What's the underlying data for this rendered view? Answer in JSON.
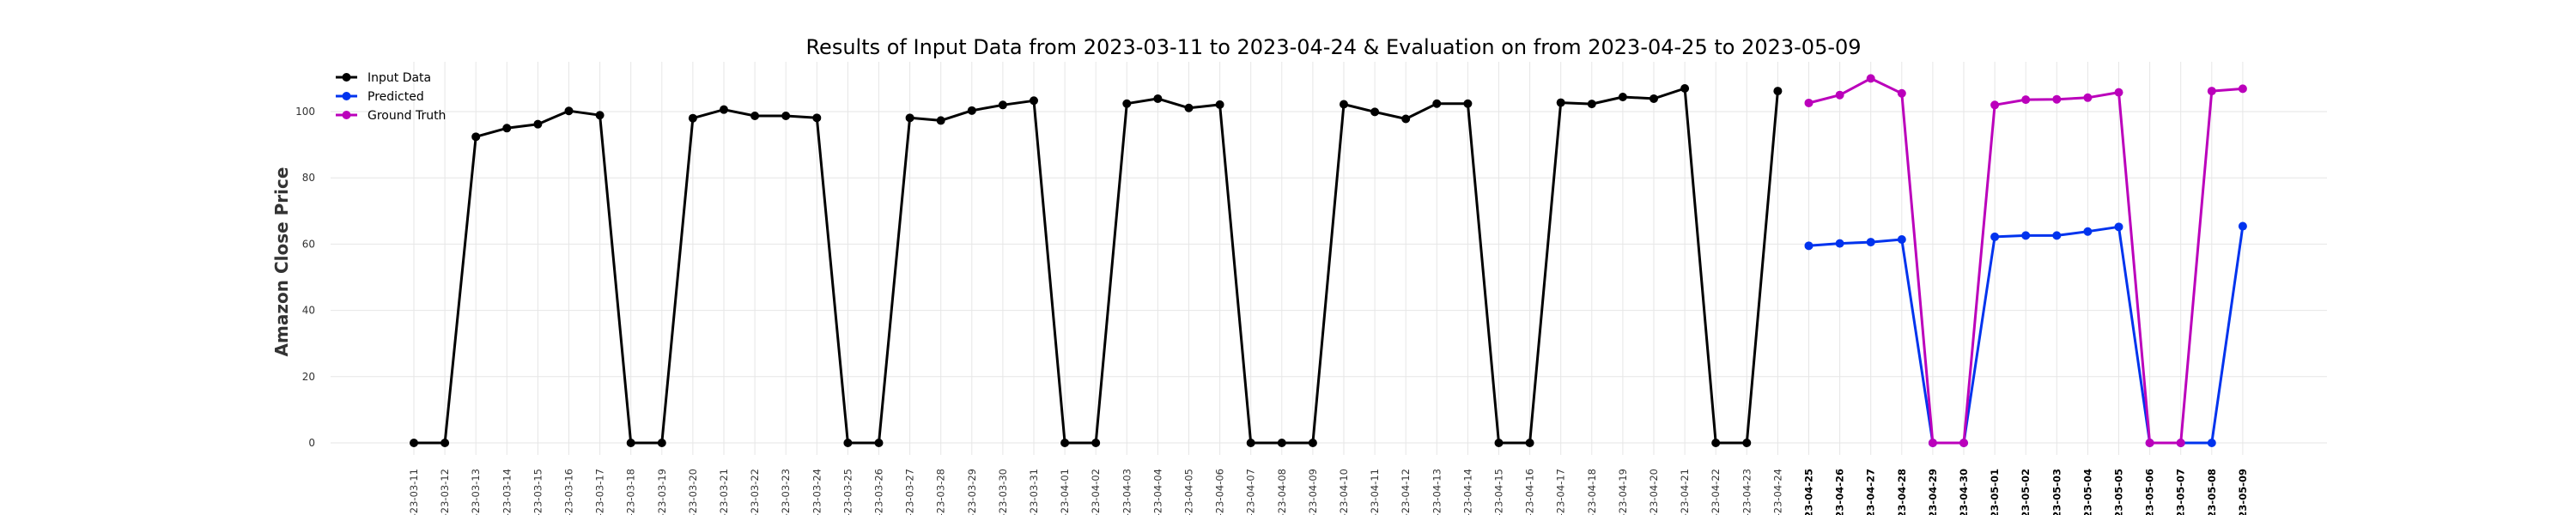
{
  "chart_data": {
    "type": "line",
    "title": "Results of Input Data from 2023-03-11 to 2023-04-24 & Evaluation on from 2023-04-25 to 2023-05-09",
    "xlabel": "",
    "ylabel": "Amazon Close Price",
    "ylim": [
      -8,
      118
    ],
    "yticks": [
      0,
      20,
      40,
      60,
      80,
      100
    ],
    "grid": true,
    "legend_position": "top-left",
    "x": [
      "2023-03-11",
      "2023-03-12",
      "2023-03-13",
      "2023-03-14",
      "2023-03-15",
      "2023-03-16",
      "2023-03-17",
      "2023-03-18",
      "2023-03-19",
      "2023-03-20",
      "2023-03-21",
      "2023-03-22",
      "2023-03-23",
      "2023-03-24",
      "2023-03-25",
      "2023-03-26",
      "2023-03-27",
      "2023-03-28",
      "2023-03-29",
      "2023-03-30",
      "2023-03-31",
      "2023-04-01",
      "2023-04-02",
      "2023-04-03",
      "2023-04-04",
      "2023-04-05",
      "2023-04-06",
      "2023-04-07",
      "2023-04-08",
      "2023-04-09",
      "2023-04-10",
      "2023-04-11",
      "2023-04-12",
      "2023-04-13",
      "2023-04-14",
      "2023-04-15",
      "2023-04-16",
      "2023-04-17",
      "2023-04-18",
      "2023-04-19",
      "2023-04-20",
      "2023-04-21",
      "2023-04-22",
      "2023-04-23",
      "2023-04-24",
      "2023-04-25",
      "2023-04-26",
      "2023-04-27",
      "2023-04-28",
      "2023-04-29",
      "2023-04-30",
      "2023-05-01",
      "2023-05-02",
      "2023-05-03",
      "2023-05-04",
      "2023-05-05",
      "2023-05-06",
      "2023-05-07",
      "2023-05-08",
      "2023-05-09"
    ],
    "xtick_labels": [
      "-23-03-11",
      "-23-03-12",
      "-23-03-13",
      "-23-03-14",
      "-23-03-15",
      "-23-03-16",
      "-23-03-17",
      "-23-03-18",
      "-23-03-19",
      "-23-03-20",
      "-23-03-21",
      "-23-03-22",
      "-23-03-23",
      "-23-03-24",
      "-23-03-25",
      "-23-03-26",
      "-23-03-27",
      "-23-03-28",
      "-23-03-29",
      "-23-03-30",
      "-23-03-31",
      "-23-04-01",
      "-23-04-02",
      "-23-04-03",
      "-23-04-04",
      "-23-04-05",
      "-23-04-06",
      "-23-04-07",
      "-23-04-08",
      "-23-04-09",
      "-23-04-10",
      "-23-04-11",
      "-23-04-12",
      "-23-04-13",
      "-23-04-14",
      "-23-04-15",
      "-23-04-16",
      "-23-04-17",
      "-23-04-18",
      "-23-04-19",
      "-23-04-20",
      "-23-04-21",
      "-23-04-22",
      "-23-04-23",
      "-23-04-24",
      "-23-04-25",
      "-23-04-26",
      "-23-04-27",
      "-23-04-28",
      "-23-04-29",
      "-23-04-30",
      "-23-05-01",
      "-23-05-02",
      "-23-05-03",
      "-23-05-04",
      "-23-05-05",
      "-23-05-06",
      "-23-05-07",
      "-23-05-08",
      "-23-05-09"
    ],
    "bold_from": "2023-04-25",
    "series": [
      {
        "name": "Input Data",
        "color": "#000000",
        "x": [
          "2023-03-11",
          "2023-03-12",
          "2023-03-13",
          "2023-03-14",
          "2023-03-15",
          "2023-03-16",
          "2023-03-17",
          "2023-03-18",
          "2023-03-19",
          "2023-03-20",
          "2023-03-21",
          "2023-03-22",
          "2023-03-23",
          "2023-03-24",
          "2023-03-25",
          "2023-03-26",
          "2023-03-27",
          "2023-03-28",
          "2023-03-29",
          "2023-03-30",
          "2023-03-31",
          "2023-04-01",
          "2023-04-02",
          "2023-04-03",
          "2023-04-04",
          "2023-04-05",
          "2023-04-06",
          "2023-04-07",
          "2023-04-08",
          "2023-04-09",
          "2023-04-10",
          "2023-04-11",
          "2023-04-12",
          "2023-04-13",
          "2023-04-14",
          "2023-04-15",
          "2023-04-16",
          "2023-04-17",
          "2023-04-18",
          "2023-04-19",
          "2023-04-20",
          "2023-04-21",
          "2023-04-22",
          "2023-04-23",
          "2023-04-24"
        ],
        "values": [
          0,
          0,
          92.4,
          95.0,
          96.2,
          100.2,
          98.9,
          0,
          0,
          98.0,
          100.6,
          98.7,
          98.7,
          98.1,
          0,
          0,
          98.1,
          97.3,
          100.3,
          102.0,
          103.3,
          0,
          0,
          102.4,
          103.9,
          101.1,
          102.1,
          0,
          0,
          0,
          102.2,
          99.9,
          97.8,
          102.4,
          102.4,
          0,
          0,
          102.7,
          102.3,
          104.4,
          103.9,
          107.0,
          0,
          0,
          106.2
        ]
      },
      {
        "name": "Predicted",
        "color": "#0033ee",
        "x": [
          "2023-04-25",
          "2023-04-26",
          "2023-04-27",
          "2023-04-28",
          "2023-04-29",
          "2023-04-30",
          "2023-05-01",
          "2023-05-02",
          "2023-05-03",
          "2023-05-04",
          "2023-05-05",
          "2023-05-06",
          "2023-05-07",
          "2023-05-08",
          "2023-05-09"
        ],
        "values": [
          59.5,
          60.2,
          60.6,
          61.4,
          0,
          0,
          62.2,
          62.6,
          62.6,
          63.8,
          65.2,
          0,
          0,
          0,
          65.4
        ]
      },
      {
        "name": "Ground Truth",
        "color": "#bb00bb",
        "x": [
          "2023-04-25",
          "2023-04-26",
          "2023-04-27",
          "2023-04-28",
          "2023-04-29",
          "2023-04-30",
          "2023-05-01",
          "2023-05-02",
          "2023-05-03",
          "2023-05-04",
          "2023-05-05",
          "2023-05-06",
          "2023-05-07",
          "2023-05-08",
          "2023-05-09"
        ],
        "values": [
          102.6,
          105.0,
          110.0,
          105.5,
          0,
          0,
          102.0,
          103.6,
          103.7,
          104.2,
          105.8,
          0,
          0,
          106.2,
          106.9
        ]
      }
    ]
  }
}
